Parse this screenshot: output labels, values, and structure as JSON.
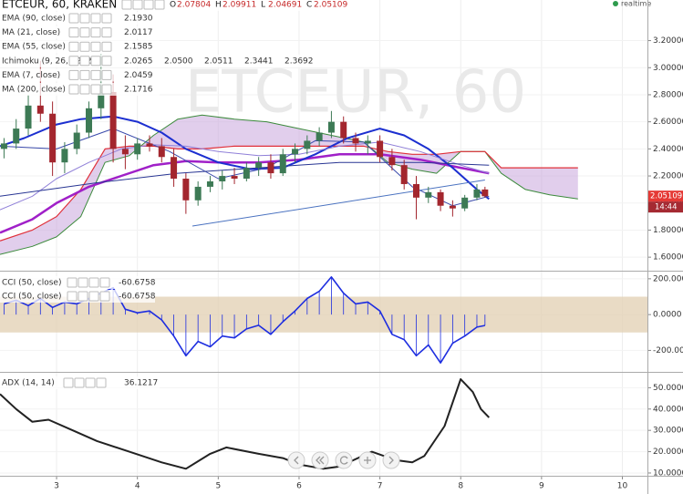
{
  "chart_data": [
    {
      "type": "candlestick",
      "title": "ETCEUR, 60, KRAKEN",
      "watermark": "ETCEUR, 60",
      "status": "realtime",
      "ohlc_letters": [
        "O",
        "H",
        "L",
        "C"
      ],
      "ohlc_values": [
        2.07804,
        2.09911,
        2.04691,
        2.05109
      ],
      "up_color": "#3d7a55",
      "down_color": "#a3262e",
      "x": [
        2.35,
        2.5,
        2.65,
        2.8,
        2.95,
        3.1,
        3.25,
        3.4,
        3.55,
        3.7,
        3.85,
        4.0,
        4.15,
        4.3,
        4.45,
        4.6,
        4.75,
        4.9,
        5.05,
        5.2,
        5.35,
        5.5,
        5.65,
        5.8,
        5.95,
        6.1,
        6.25,
        6.4,
        6.55,
        6.7,
        6.85,
        7.0,
        7.15,
        7.3,
        7.45,
        7.6,
        7.75,
        7.9,
        8.05,
        8.2,
        8.3
      ],
      "open": [
        2.4,
        2.44,
        2.55,
        2.72,
        2.66,
        2.3,
        2.4,
        2.52,
        2.7,
        2.82,
        2.4,
        2.36,
        2.44,
        2.42,
        2.34,
        2.18,
        2.02,
        2.12,
        2.16,
        2.2,
        2.18,
        2.26,
        2.3,
        2.22,
        2.36,
        2.4,
        2.46,
        2.52,
        2.6,
        2.48,
        2.44,
        2.46,
        2.34,
        2.28,
        2.14,
        2.04,
        2.08,
        1.98,
        1.96,
        2.04,
        2.1
      ],
      "high": [
        2.48,
        2.62,
        2.8,
        3.05,
        2.75,
        2.45,
        2.58,
        2.75,
        3.1,
        2.95,
        2.5,
        2.48,
        2.5,
        2.48,
        2.4,
        2.22,
        2.16,
        2.2,
        2.24,
        2.26,
        2.3,
        2.34,
        2.36,
        2.4,
        2.44,
        2.5,
        2.56,
        2.68,
        2.64,
        2.52,
        2.5,
        2.5,
        2.4,
        2.32,
        2.2,
        2.12,
        2.1,
        2.02,
        2.06,
        2.14,
        2.12
      ],
      "low": [
        2.33,
        2.4,
        2.5,
        2.6,
        2.2,
        2.22,
        2.36,
        2.48,
        2.62,
        2.3,
        2.25,
        2.32,
        2.38,
        2.3,
        2.12,
        1.92,
        1.98,
        2.08,
        2.1,
        2.14,
        2.16,
        2.2,
        2.18,
        2.2,
        2.3,
        2.36,
        2.42,
        2.48,
        2.44,
        2.38,
        2.36,
        2.3,
        2.24,
        2.1,
        1.88,
        2.0,
        1.94,
        1.9,
        1.94,
        2.02,
        2.04
      ],
      "close": [
        2.44,
        2.55,
        2.72,
        2.66,
        2.3,
        2.4,
        2.52,
        2.7,
        2.82,
        2.4,
        2.36,
        2.44,
        2.42,
        2.34,
        2.18,
        2.02,
        2.12,
        2.16,
        2.2,
        2.18,
        2.26,
        2.3,
        2.22,
        2.36,
        2.4,
        2.46,
        2.52,
        2.6,
        2.48,
        2.44,
        2.46,
        2.34,
        2.28,
        2.14,
        2.04,
        2.08,
        1.98,
        1.96,
        2.04,
        2.1,
        2.05
      ],
      "xlim": [
        2.3,
        10.31
      ],
      "ylim": [
        1.5,
        3.5
      ],
      "yticks": [
        {
          "value": 1.6,
          "label": "1.60000"
        },
        {
          "value": 1.8,
          "label": "1.80000"
        },
        {
          "value": 2.0,
          "label": "2.00000"
        },
        {
          "value": 2.2,
          "label": "2.20000"
        },
        {
          "value": 2.4,
          "label": "2.40000"
        },
        {
          "value": 2.6,
          "label": "2.60000"
        },
        {
          "value": 2.8,
          "label": "2.80000"
        },
        {
          "value": 3.0,
          "label": "3.00000"
        },
        {
          "value": 3.2,
          "label": "3.20000"
        }
      ],
      "series": [
        {
          "name": "EMA (90, close)",
          "color": "#a020c8",
          "width": 2.5,
          "last": "2.1930",
          "x": [
            2.3,
            2.7,
            3.0,
            3.4,
            3.8,
            4.2,
            4.6,
            5.0,
            5.5,
            6.0,
            6.5,
            7.0,
            7.5,
            8.0,
            8.35
          ],
          "values": [
            1.78,
            1.88,
            2.0,
            2.12,
            2.2,
            2.28,
            2.31,
            2.3,
            2.3,
            2.32,
            2.36,
            2.36,
            2.32,
            2.26,
            2.22
          ]
        },
        {
          "name": "MA (21, close)",
          "color": "#1c2fd0",
          "width": 2,
          "last": "2.0117",
          "x": [
            2.3,
            2.6,
            3.0,
            3.3,
            3.7,
            4.0,
            4.3,
            4.6,
            5.0,
            5.4,
            5.8,
            6.2,
            6.6,
            7.0,
            7.3,
            7.6,
            7.9,
            8.2,
            8.35
          ],
          "values": [
            2.42,
            2.48,
            2.58,
            2.62,
            2.64,
            2.6,
            2.52,
            2.4,
            2.3,
            2.25,
            2.26,
            2.36,
            2.48,
            2.55,
            2.5,
            2.4,
            2.26,
            2.1,
            2.03
          ]
        },
        {
          "name": "EMA (55, close)",
          "color": "#8f7fd8",
          "width": 1,
          "last": "2.1585",
          "x": [
            2.3,
            2.7,
            3.0,
            3.4,
            3.8,
            4.2,
            4.6,
            5.0,
            5.5,
            6.0,
            6.5,
            7.0,
            7.5,
            8.0,
            8.35
          ],
          "values": [
            1.95,
            2.05,
            2.18,
            2.3,
            2.4,
            2.43,
            2.42,
            2.38,
            2.35,
            2.36,
            2.42,
            2.45,
            2.38,
            2.28,
            2.22
          ]
        },
        {
          "name": "Ichimoku (9, 26, 52, 26)",
          "last": [
            "2.0265",
            "2.0500",
            "2.0511",
            "2.3441",
            "2.3692"
          ],
          "last_colors": [
            "#2196f3",
            "#8b1a1a",
            "#2e7d32",
            "#2e7d32",
            "#c62828"
          ],
          "fill": "#c9a6dc",
          "span_a_color": "#3b8a3b",
          "span_b_color": "#e0303a",
          "x": [
            2.3,
            2.7,
            3.0,
            3.3,
            3.6,
            3.9,
            4.2,
            4.5,
            4.8,
            5.2,
            5.6,
            6.0,
            6.4,
            6.8,
            7.1,
            7.4,
            7.7,
            8.0,
            8.3,
            8.5,
            8.8,
            9.1,
            9.45
          ],
          "span_a": [
            1.62,
            1.68,
            1.75,
            1.9,
            2.3,
            2.35,
            2.5,
            2.62,
            2.65,
            2.62,
            2.6,
            2.55,
            2.5,
            2.45,
            2.3,
            2.25,
            2.22,
            2.38,
            2.38,
            2.22,
            2.1,
            2.06,
            2.03
          ],
          "span_b": [
            1.72,
            1.8,
            1.9,
            2.1,
            2.4,
            2.42,
            2.42,
            2.4,
            2.4,
            2.42,
            2.42,
            2.42,
            2.42,
            2.42,
            2.38,
            2.36,
            2.36,
            2.38,
            2.38,
            2.26,
            2.26,
            2.26,
            2.26
          ]
        },
        {
          "name": "EMA (7, close)",
          "color": "#3949ab",
          "width": 1,
          "last": "2.0459",
          "x": [
            2.3,
            3.0,
            3.7,
            4.4,
            5.0,
            5.6,
            6.2,
            6.8,
            7.4,
            7.9,
            8.35
          ],
          "values": [
            2.42,
            2.4,
            2.55,
            2.38,
            2.18,
            2.26,
            2.46,
            2.45,
            2.12,
            1.98,
            2.05
          ]
        },
        {
          "name": "MA (200, close)",
          "color": "#283593",
          "width": 1,
          "last": "2.1716",
          "x": [
            2.3,
            3.5,
            4.5,
            5.5,
            6.5,
            7.5,
            8.35
          ],
          "values": [
            2.05,
            2.15,
            2.22,
            2.26,
            2.3,
            2.3,
            2.28
          ]
        }
      ],
      "trendline": {
        "x": [
          4.68,
          8.3
        ],
        "values": [
          1.83,
          2.17
        ],
        "color": "#4a72c0"
      },
      "price_tag": {
        "value": 2.05109,
        "time": "14:44",
        "color": "#e53935"
      }
    },
    {
      "type": "line",
      "labels": [
        "CCI (50, close)",
        "CCI (50, close)"
      ],
      "last_labels": [
        "-60.6758",
        "-60.6758"
      ],
      "color": "#1e2ee0",
      "band": [
        -100,
        100
      ],
      "band_color": "#e2cfb2",
      "x": [
        2.35,
        2.5,
        2.65,
        2.8,
        2.95,
        3.1,
        3.25,
        3.4,
        3.55,
        3.7,
        3.85,
        4.0,
        4.15,
        4.3,
        4.45,
        4.6,
        4.75,
        4.9,
        5.05,
        5.2,
        5.35,
        5.5,
        5.65,
        5.8,
        5.95,
        6.1,
        6.25,
        6.4,
        6.55,
        6.7,
        6.85,
        7.0,
        7.15,
        7.3,
        7.45,
        7.6,
        7.75,
        7.9,
        8.05,
        8.2,
        8.3
      ],
      "values": [
        60,
        80,
        50,
        90,
        40,
        70,
        60,
        90,
        120,
        150,
        30,
        10,
        20,
        -30,
        -120,
        -230,
        -150,
        -180,
        -120,
        -130,
        -80,
        -60,
        -110,
        -40,
        20,
        90,
        130,
        210,
        120,
        60,
        70,
        20,
        -110,
        -140,
        -230,
        -170,
        -270,
        -160,
        -120,
        -70,
        -61
      ],
      "xlim": [
        2.3,
        10.31
      ],
      "ylim": [
        -320,
        240
      ],
      "yticks": [
        {
          "value": -200,
          "label": "-200.0000"
        },
        {
          "value": 0,
          "label": "0.0000"
        },
        {
          "value": 200,
          "label": "200.0000"
        }
      ]
    },
    {
      "type": "line",
      "name": "ADX (14, 14)",
      "last": "36.1217",
      "color": "#222222",
      "x": [
        2.3,
        2.5,
        2.7,
        2.9,
        3.2,
        3.5,
        3.9,
        4.3,
        4.6,
        4.9,
        5.1,
        5.5,
        5.8,
        6.0,
        6.3,
        6.5,
        6.9,
        7.2,
        7.4,
        7.55,
        7.8,
        8.0,
        8.15,
        8.25,
        8.35
      ],
      "values": [
        47,
        40,
        34,
        35,
        30,
        25,
        20,
        15,
        12,
        19,
        22,
        19,
        17,
        14,
        12,
        13,
        20,
        16,
        15,
        18,
        32,
        54,
        48,
        40,
        36
      ],
      "xlim": [
        2.3,
        10.31
      ],
      "ylim": [
        8.7,
        57
      ],
      "yticks": [
        {
          "value": 10,
          "label": "10.0000"
        },
        {
          "value": 20,
          "label": "20.0000"
        },
        {
          "value": 30,
          "label": "30.0000"
        },
        {
          "value": 40,
          "label": "40.0000"
        },
        {
          "value": 50,
          "label": "50.0000"
        }
      ],
      "xticks": [
        3,
        4,
        5,
        6,
        7,
        8,
        9,
        10
      ]
    }
  ]
}
